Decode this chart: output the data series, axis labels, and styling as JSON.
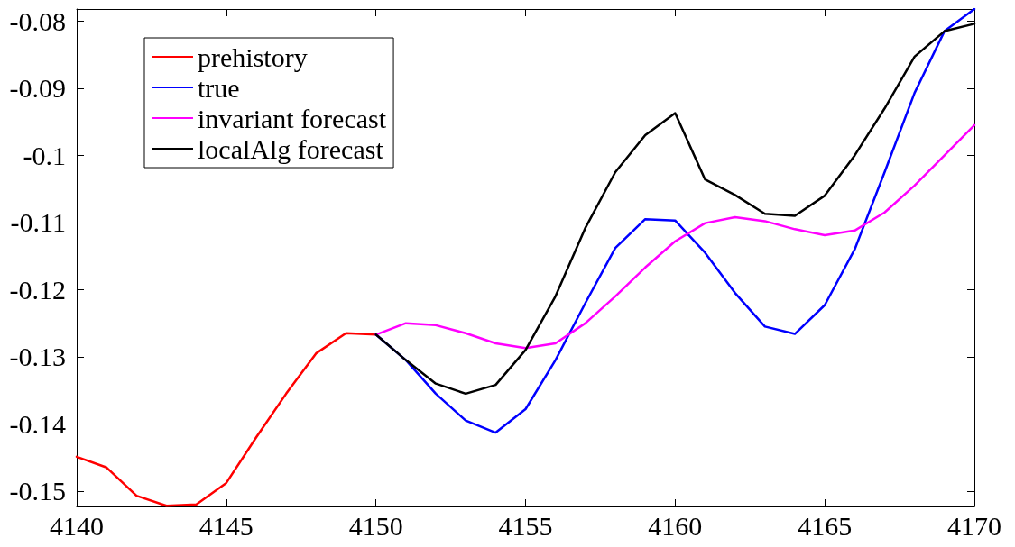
{
  "chart_data": {
    "type": "line",
    "xlim": [
      4140,
      4170
    ],
    "xticks": [
      4140,
      4145,
      4150,
      4155,
      4160,
      4165,
      4170
    ],
    "ylim": [
      -0.1523,
      -0.0782
    ],
    "yticks": [
      -0.15,
      -0.14,
      -0.13,
      -0.12,
      -0.11,
      -0.1,
      -0.09,
      -0.08
    ],
    "grid": false,
    "legend": "top left",
    "marker": "none",
    "line_style": "solid",
    "series": [
      {
        "name": "prehistory",
        "color": "#ff0000",
        "x": [
          4140,
          4141,
          4142,
          4143,
          4144,
          4145,
          4146,
          4147,
          4148,
          4149,
          4150
        ],
        "values": [
          -0.1449,
          -0.1465,
          -0.1507,
          -0.1522,
          -0.152,
          -0.1488,
          -0.142,
          -0.1355,
          -0.1295,
          -0.1265,
          -0.1267
        ]
      },
      {
        "name": "true",
        "color": "#0000ff",
        "x": [
          4150,
          4151,
          4152,
          4153,
          4154,
          4155,
          4156,
          4157,
          4158,
          4159,
          4160,
          4161,
          4162,
          4163,
          4164,
          4165,
          4166,
          4167,
          4168,
          4169,
          4170
        ],
        "values": [
          -0.1267,
          -0.1305,
          -0.1355,
          -0.1395,
          -0.1413,
          -0.1378,
          -0.1305,
          -0.122,
          -0.1138,
          -0.1095,
          -0.1097,
          -0.1145,
          -0.1205,
          -0.1255,
          -0.1266,
          -0.1223,
          -0.114,
          -0.1025,
          -0.0907,
          -0.0815,
          -0.0782
        ]
      },
      {
        "name": "invariant forecast",
        "color": "#ff00ff",
        "x": [
          4150,
          4151,
          4152,
          4153,
          4154,
          4155,
          4156,
          4157,
          4158,
          4159,
          4160,
          4161,
          4162,
          4163,
          4164,
          4165,
          4166,
          4167,
          4168,
          4169,
          4170
        ],
        "values": [
          -0.1267,
          -0.125,
          -0.1253,
          -0.1265,
          -0.128,
          -0.1287,
          -0.128,
          -0.125,
          -0.121,
          -0.1167,
          -0.1128,
          -0.1101,
          -0.1092,
          -0.1098,
          -0.111,
          -0.1119,
          -0.1112,
          -0.1085,
          -0.1045,
          -0.1,
          -0.0955
        ]
      },
      {
        "name": "localAlg forecast",
        "color": "#000000",
        "x": [
          4150,
          4151,
          4152,
          4153,
          4154,
          4155,
          4156,
          4157,
          4158,
          4159,
          4160,
          4161,
          4162,
          4163,
          4164,
          4165,
          4166,
          4167,
          4168,
          4169,
          4170
        ],
        "values": [
          -0.1267,
          -0.1305,
          -0.134,
          -0.1355,
          -0.1342,
          -0.129,
          -0.121,
          -0.1108,
          -0.1025,
          -0.097,
          -0.0937,
          -0.1036,
          -0.1059,
          -0.1087,
          -0.109,
          -0.106,
          -0.1,
          -0.093,
          -0.0853,
          -0.0815,
          -0.0804
        ]
      }
    ]
  }
}
